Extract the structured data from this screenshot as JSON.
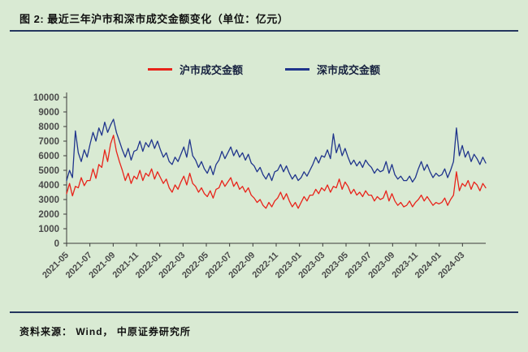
{
  "page": {
    "title": "图 2:  最近三年沪市和深市成交金额变化（单位：亿元）",
    "source": "资料来源：  Wind，  中原证券研究所"
  },
  "colors": {
    "background": "#d9ead3",
    "rule": "#24365e",
    "axis": "#3a3a3a",
    "tick_text": "#4a4a4a",
    "shanghai_line": "#e8231a",
    "shenzhen_line": "#20358c"
  },
  "chart_data": {
    "type": "line",
    "title": "最近三年沪市和深市成交金额变化",
    "unit": "亿元",
    "ylim": [
      0,
      10000
    ],
    "y_ticks": [
      0,
      1000,
      2000,
      3000,
      4000,
      5000,
      6000,
      7000,
      8000,
      9000,
      10000
    ],
    "months_total": 36,
    "x_tick_month_index": [
      0,
      2,
      4,
      6,
      8,
      10,
      12,
      14,
      16,
      18,
      20,
      22,
      24,
      26,
      28,
      30,
      32,
      34
    ],
    "x_tick_labels": [
      "2021-05",
      "2021-07",
      "2021-09",
      "2021-11",
      "2022-01",
      "2022-03",
      "2022-05",
      "2022-07",
      "2022-09",
      "2022-11",
      "2023-01",
      "2023-03",
      "2023-05",
      "2023-07",
      "2023-09",
      "2023-11",
      "2024-01",
      "2024-03"
    ],
    "legend_position": "top",
    "grid": false,
    "series": [
      {
        "name": "沪市成交金额",
        "color": "#e8231a",
        "values": [
          3400,
          4100,
          3250,
          3900,
          3800,
          4500,
          3950,
          4300,
          4300,
          5100,
          4450,
          5400,
          5200,
          6400,
          5600,
          6800,
          7400,
          6300,
          5600,
          5000,
          4300,
          4800,
          4100,
          4600,
          4400,
          5000,
          4300,
          4800,
          4600,
          5100,
          4400,
          4900,
          4500,
          4100,
          4400,
          3800,
          3500,
          4000,
          3700,
          4200,
          4600,
          4000,
          4800,
          4100,
          3900,
          3500,
          3800,
          3400,
          3200,
          3600,
          3100,
          3700,
          3800,
          4300,
          3900,
          4200,
          4500,
          3900,
          4200,
          3700,
          3900,
          3500,
          3800,
          3300,
          3100,
          2800,
          3000,
          2600,
          2400,
          2800,
          2500,
          2900,
          3100,
          3500,
          3000,
          3400,
          2900,
          2500,
          2800,
          2400,
          2800,
          3200,
          2900,
          3300,
          3300,
          3700,
          3400,
          3800,
          3600,
          4000,
          3500,
          3900,
          3800,
          4400,
          3700,
          4200,
          3900,
          3400,
          3700,
          3300,
          3500,
          3200,
          3600,
          3300,
          3300,
          2900,
          3200,
          3000,
          3100,
          3600,
          2900,
          3400,
          2900,
          2600,
          2800,
          2500,
          2600,
          2900,
          2500,
          2800,
          3000,
          3300,
          2900,
          3200,
          2900,
          2600,
          2800,
          2700,
          2800,
          3100,
          2600,
          3000,
          3300,
          4900,
          3600,
          4100,
          3900,
          4300,
          3700,
          4200,
          4000,
          3600,
          4100,
          3800
        ]
      },
      {
        "name": "深市成交金额",
        "color": "#20358c",
        "values": [
          4300,
          5000,
          4500,
          7700,
          6200,
          5600,
          6400,
          5900,
          6800,
          7600,
          7000,
          7900,
          7400,
          8300,
          7600,
          8100,
          8500,
          7600,
          7000,
          6400,
          5900,
          6500,
          5700,
          6300,
          6400,
          7000,
          6300,
          6900,
          6600,
          7100,
          6500,
          7000,
          6400,
          5900,
          6200,
          5600,
          5400,
          5900,
          5600,
          6100,
          6600,
          5900,
          7100,
          6000,
          5700,
          5200,
          5600,
          5100,
          4800,
          5300,
          4700,
          5400,
          5700,
          6300,
          5800,
          6200,
          6600,
          6000,
          6400,
          5900,
          6200,
          5700,
          6100,
          5500,
          5300,
          4900,
          5200,
          4700,
          4400,
          4800,
          4300,
          4900,
          5000,
          5400,
          4900,
          5300,
          4800,
          4400,
          4700,
          4300,
          4500,
          4900,
          4600,
          5000,
          5400,
          5900,
          5500,
          6000,
          5900,
          6400,
          5800,
          7500,
          6200,
          6800,
          6000,
          6500,
          5900,
          5400,
          5700,
          5300,
          5600,
          5200,
          5700,
          5400,
          5200,
          4800,
          5100,
          4900,
          5000,
          5600,
          4800,
          5400,
          4700,
          4400,
          4600,
          4300,
          4300,
          4600,
          4200,
          4500,
          5100,
          5600,
          5000,
          5400,
          4900,
          4500,
          4800,
          4600,
          4700,
          5100,
          4500,
          5000,
          5600,
          7900,
          6000,
          6700,
          5900,
          6300,
          5600,
          6100,
          5800,
          5400,
          5900,
          5500
        ]
      }
    ]
  }
}
